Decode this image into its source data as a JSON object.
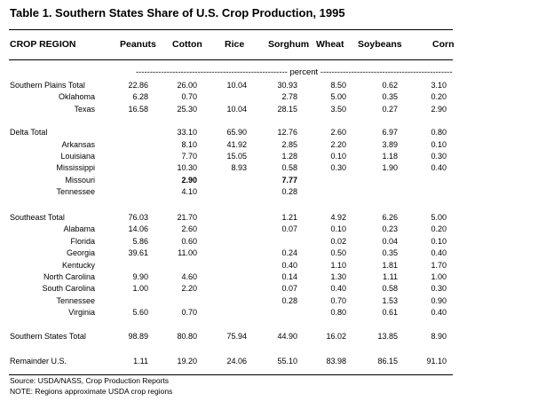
{
  "title": "Table 1.  Southern States Share of U.S. Crop Production, 1995",
  "headers": [
    "CROP REGION",
    "Peanuts",
    "Cotton",
    "Rice",
    "Sorghum",
    "Wheat",
    "Soybeans",
    "Corn"
  ],
  "unit_label": "percent",
  "rows": [
    {
      "label": "Southern Plains Total",
      "level": 0,
      "values": [
        "22.86",
        "26.00",
        "10.04",
        "30.93",
        "8.50",
        "0.62",
        "3.10"
      ]
    },
    {
      "label": "Oklahoma",
      "level": 1,
      "values": [
        "6.28",
        "0.70",
        "",
        "2.78",
        "5.00",
        "0.35",
        "0.20"
      ]
    },
    {
      "label": "Texas",
      "level": 1,
      "values": [
        "16.58",
        "25.30",
        "10.04",
        "28.15",
        "3.50",
        "0.27",
        "2.90"
      ]
    },
    {
      "label": "Delta Total",
      "level": 0,
      "values": [
        "",
        "33.10",
        "65.90",
        "12.76",
        "2.60",
        "6.97",
        "0.80"
      ]
    },
    {
      "label": "Arkansas",
      "level": 1,
      "values": [
        "",
        "8.10",
        "41.92",
        "2.85",
        "2.20",
        "3.89",
        "0.10"
      ]
    },
    {
      "label": "Louisiana",
      "level": 1,
      "values": [
        "",
        "7.70",
        "15.05",
        "1.28",
        "0.10",
        "1.18",
        "0.30"
      ]
    },
    {
      "label": "Mississippi",
      "level": 1,
      "values": [
        "",
        "10.30",
        "8.93",
        "0.58",
        "0.30",
        "1.90",
        "0.40"
      ]
    },
    {
      "label": "Missouri",
      "level": 1,
      "values": [
        "",
        "2.90",
        "",
        "7.77",
        "",
        "",
        ""
      ],
      "bold": [
        false,
        true,
        false,
        true,
        false,
        false,
        false
      ]
    },
    {
      "label": "Tennessee",
      "level": 1,
      "values": [
        "",
        "4.10",
        "",
        "0.28",
        "",
        "",
        ""
      ]
    },
    {
      "label": "Southeast Total",
      "level": 0,
      "values": [
        "76.03",
        "21.70",
        "",
        "1.21",
        "4.92",
        "6.26",
        "5.00"
      ]
    },
    {
      "label": "Alabama",
      "level": 1,
      "values": [
        "14.06",
        "2.60",
        "",
        "0.07",
        "0.10",
        "0.23",
        "0.20"
      ]
    },
    {
      "label": "Florida",
      "level": 1,
      "values": [
        "5.86",
        "0.60",
        "",
        "",
        "0.02",
        "0.04",
        "0.10"
      ]
    },
    {
      "label": "Georgia",
      "level": 1,
      "values": [
        "39.61",
        "11.00",
        "",
        "0.24",
        "0.50",
        "0.35",
        "0.40"
      ]
    },
    {
      "label": "Kentucky",
      "level": 1,
      "values": [
        "",
        "",
        "",
        "0.40",
        "1.10",
        "1.81",
        "1.70"
      ]
    },
    {
      "label": "North Carolina",
      "level": 1,
      "values": [
        "9.90",
        "4.60",
        "",
        "0.14",
        "1.30",
        "1.11",
        "1.00"
      ]
    },
    {
      "label": "South Carolina",
      "level": 1,
      "values": [
        "1.00",
        "2.20",
        "",
        "0.07",
        "0.40",
        "0.58",
        "0.30"
      ]
    },
    {
      "label": "Tennessee",
      "level": 1,
      "values": [
        "",
        "",
        "",
        "0.28",
        "0.70",
        "1.53",
        "0.90"
      ]
    },
    {
      "label": "Virginia",
      "level": 1,
      "values": [
        "5.60",
        "0.70",
        "",
        "",
        "0.80",
        "0.61",
        "0.40"
      ]
    },
    {
      "label": "Southern States Total",
      "level": 0,
      "values": [
        "98.89",
        "80.80",
        "75.94",
        "44.90",
        "16.02",
        "13.85",
        "8.90"
      ]
    },
    {
      "label": "Remainder U.S.",
      "level": 0,
      "values": [
        "1.11",
        "19.20",
        "24.06",
        "55.10",
        "83.98",
        "86.15",
        "91.10"
      ]
    }
  ],
  "footer": {
    "source": "Source:  USDA/NASS, Crop Production Reports",
    "note": "NOTE:  Regions approximate USDA crop regions"
  }
}
